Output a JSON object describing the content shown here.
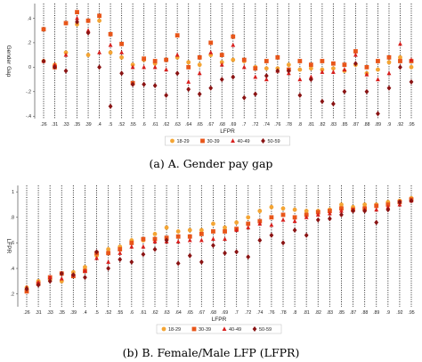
{
  "colors": {
    "18-29": "#f4a534",
    "30-39": "#e8561a",
    "40-49": "#d8201e",
    "50-59": "#8a1414",
    "dotted_line": "#111111"
  },
  "captions": {
    "a": "(a) A. Gender pay gap",
    "b": "(b) B. Female/Male LFP (LFPR)"
  },
  "chart_data": [
    {
      "type": "scatter",
      "title": "",
      "xlabel": "LFPR",
      "ylabel": "Gender Gap",
      "ylim": [
        -0.42,
        0.52
      ],
      "yticks": [
        -0.4,
        -0.2,
        0,
        0.2,
        0.4
      ],
      "ytick_labels": [
        "-.4",
        "-.2",
        "0",
        ".2",
        ".4"
      ],
      "grid": "vertical dotted line at each category",
      "legend_position": "bottom-center",
      "categories": [
        ".26",
        ".31",
        ".33",
        ".35",
        ".39",
        ".4",
        ".5",
        ".52",
        ".55",
        ".6",
        ".61",
        ".62",
        ".63",
        ".64",
        ".65",
        ".67",
        ".68",
        ".69",
        ".7",
        ".72",
        ".74",
        ".76",
        ".78",
        ".8",
        ".81",
        ".82",
        ".83",
        ".85",
        ".87",
        ".88",
        ".89",
        ".9",
        ".92",
        ".95"
      ],
      "series": [
        {
          "name": "18-29",
          "marker": "circle",
          "values": [
            0.05,
            0.02,
            0.12,
            0.35,
            0.1,
            0.38,
            0.12,
            0.08,
            0.02,
            0.06,
            0.03,
            0.06,
            0.08,
            0.04,
            0.02,
            0.1,
            0.04,
            0.06,
            0.05,
            0.0,
            -0.01,
            -0.01,
            0.02,
            -0.02,
            -0.01,
            -0.02,
            -0.01,
            -0.03,
            0.02,
            -0.05,
            -0.02,
            0.04,
            0.08,
            0.0
          ]
        },
        {
          "name": "30-39",
          "marker": "square",
          "values": [
            0.31,
            0.0,
            0.36,
            0.45,
            0.38,
            0.42,
            0.27,
            0.19,
            -0.13,
            0.07,
            0.05,
            0.06,
            0.26,
            0.0,
            0.08,
            0.2,
            0.1,
            0.25,
            0.06,
            -0.01,
            0.05,
            0.08,
            -0.02,
            0.05,
            0.02,
            0.05,
            0.03,
            0.02,
            0.13,
            0.0,
            0.05,
            0.08,
            0.05,
            0.05
          ]
        },
        {
          "name": "40-49",
          "marker": "triangle",
          "values": [
            0.05,
            0.02,
            0.1,
            0.4,
            0.3,
            0.12,
            0.18,
            0.12,
            0.0,
            0.0,
            0.0,
            -0.02,
            0.1,
            -0.12,
            -0.05,
            0.12,
            0.02,
            0.18,
            0.0,
            -0.08,
            -0.1,
            -0.03,
            -0.05,
            -0.1,
            -0.08,
            -0.04,
            -0.04,
            -0.02,
            0.1,
            -0.06,
            -0.1,
            -0.05,
            0.19,
            0.06
          ]
        },
        {
          "name": "50-59",
          "marker": "diamond",
          "values": [
            0.05,
            0.0,
            -0.03,
            0.37,
            0.28,
            0.0,
            -0.32,
            -0.05,
            -0.14,
            -0.14,
            -0.15,
            -0.23,
            -0.05,
            -0.18,
            -0.22,
            -0.17,
            -0.1,
            -0.08,
            -0.25,
            -0.22,
            -0.07,
            -0.03,
            -0.03,
            -0.23,
            -0.1,
            -0.28,
            -0.3,
            -0.2,
            0.03,
            -0.2,
            -0.38,
            -0.17,
            0.0,
            -0.12
          ]
        }
      ]
    },
    {
      "type": "scatter",
      "title": "",
      "xlabel": "LFPR",
      "ylabel": "LFPR",
      "ylim": [
        0.1,
        1.05
      ],
      "yticks": [
        0.2,
        0.4,
        0.6,
        0.8,
        1
      ],
      "ytick_labels": [
        ".2",
        ".4",
        ".6",
        ".8",
        "1"
      ],
      "grid": "vertical dotted line at each category",
      "legend_position": "bottom-center",
      "categories": [
        ".26",
        ".31",
        ".33",
        ".35",
        ".39",
        ".4",
        ".5",
        ".52",
        ".55",
        ".6",
        ".61",
        ".62",
        ".63",
        ".64",
        ".65",
        ".67",
        ".68",
        ".69",
        ".7",
        ".72",
        ".74",
        ".76",
        ".78",
        ".8",
        ".81",
        ".82",
        ".83",
        ".85",
        ".87",
        ".88",
        ".89",
        ".9",
        ".92",
        ".95"
      ],
      "series": [
        {
          "name": "18-29",
          "marker": "circle",
          "values": [
            0.25,
            0.3,
            0.31,
            0.3,
            0.37,
            0.41,
            0.5,
            0.55,
            0.57,
            0.62,
            0.62,
            0.67,
            0.72,
            0.69,
            0.7,
            0.7,
            0.75,
            0.72,
            0.76,
            0.8,
            0.85,
            0.88,
            0.87,
            0.86,
            0.85,
            0.85,
            0.86,
            0.9,
            0.88,
            0.9,
            0.9,
            0.92,
            0.93,
            0.95
          ]
        },
        {
          "name": "30-39",
          "marker": "square",
          "values": [
            0.22,
            0.28,
            0.33,
            0.36,
            0.34,
            0.38,
            0.52,
            0.52,
            0.55,
            0.6,
            0.63,
            0.63,
            0.64,
            0.65,
            0.65,
            0.67,
            0.69,
            0.69,
            0.71,
            0.75,
            0.77,
            0.8,
            0.82,
            0.8,
            0.82,
            0.84,
            0.85,
            0.87,
            0.86,
            0.87,
            0.89,
            0.9,
            0.92,
            0.94
          ]
        },
        {
          "name": "40-49",
          "marker": "triangle",
          "values": [
            0.25,
            0.29,
            0.33,
            0.32,
            0.35,
            0.38,
            0.48,
            0.45,
            0.52,
            0.57,
            0.57,
            0.61,
            0.61,
            0.61,
            0.62,
            0.62,
            0.63,
            0.63,
            0.7,
            0.72,
            0.75,
            0.74,
            0.78,
            0.77,
            0.8,
            0.82,
            0.83,
            0.85,
            0.86,
            0.86,
            0.86,
            0.88,
            0.9,
            0.93
          ]
        },
        {
          "name": "50-59",
          "marker": "diamond",
          "values": [
            0.24,
            0.27,
            0.3,
            0.36,
            0.35,
            0.33,
            0.53,
            0.4,
            0.47,
            0.45,
            0.51,
            0.55,
            0.62,
            0.44,
            0.5,
            0.45,
            0.58,
            0.52,
            0.53,
            0.49,
            0.62,
            0.66,
            0.6,
            0.7,
            0.66,
            0.78,
            0.79,
            0.82,
            0.85,
            0.85,
            0.76,
            0.86,
            0.92,
            0.93
          ]
        }
      ]
    }
  ]
}
